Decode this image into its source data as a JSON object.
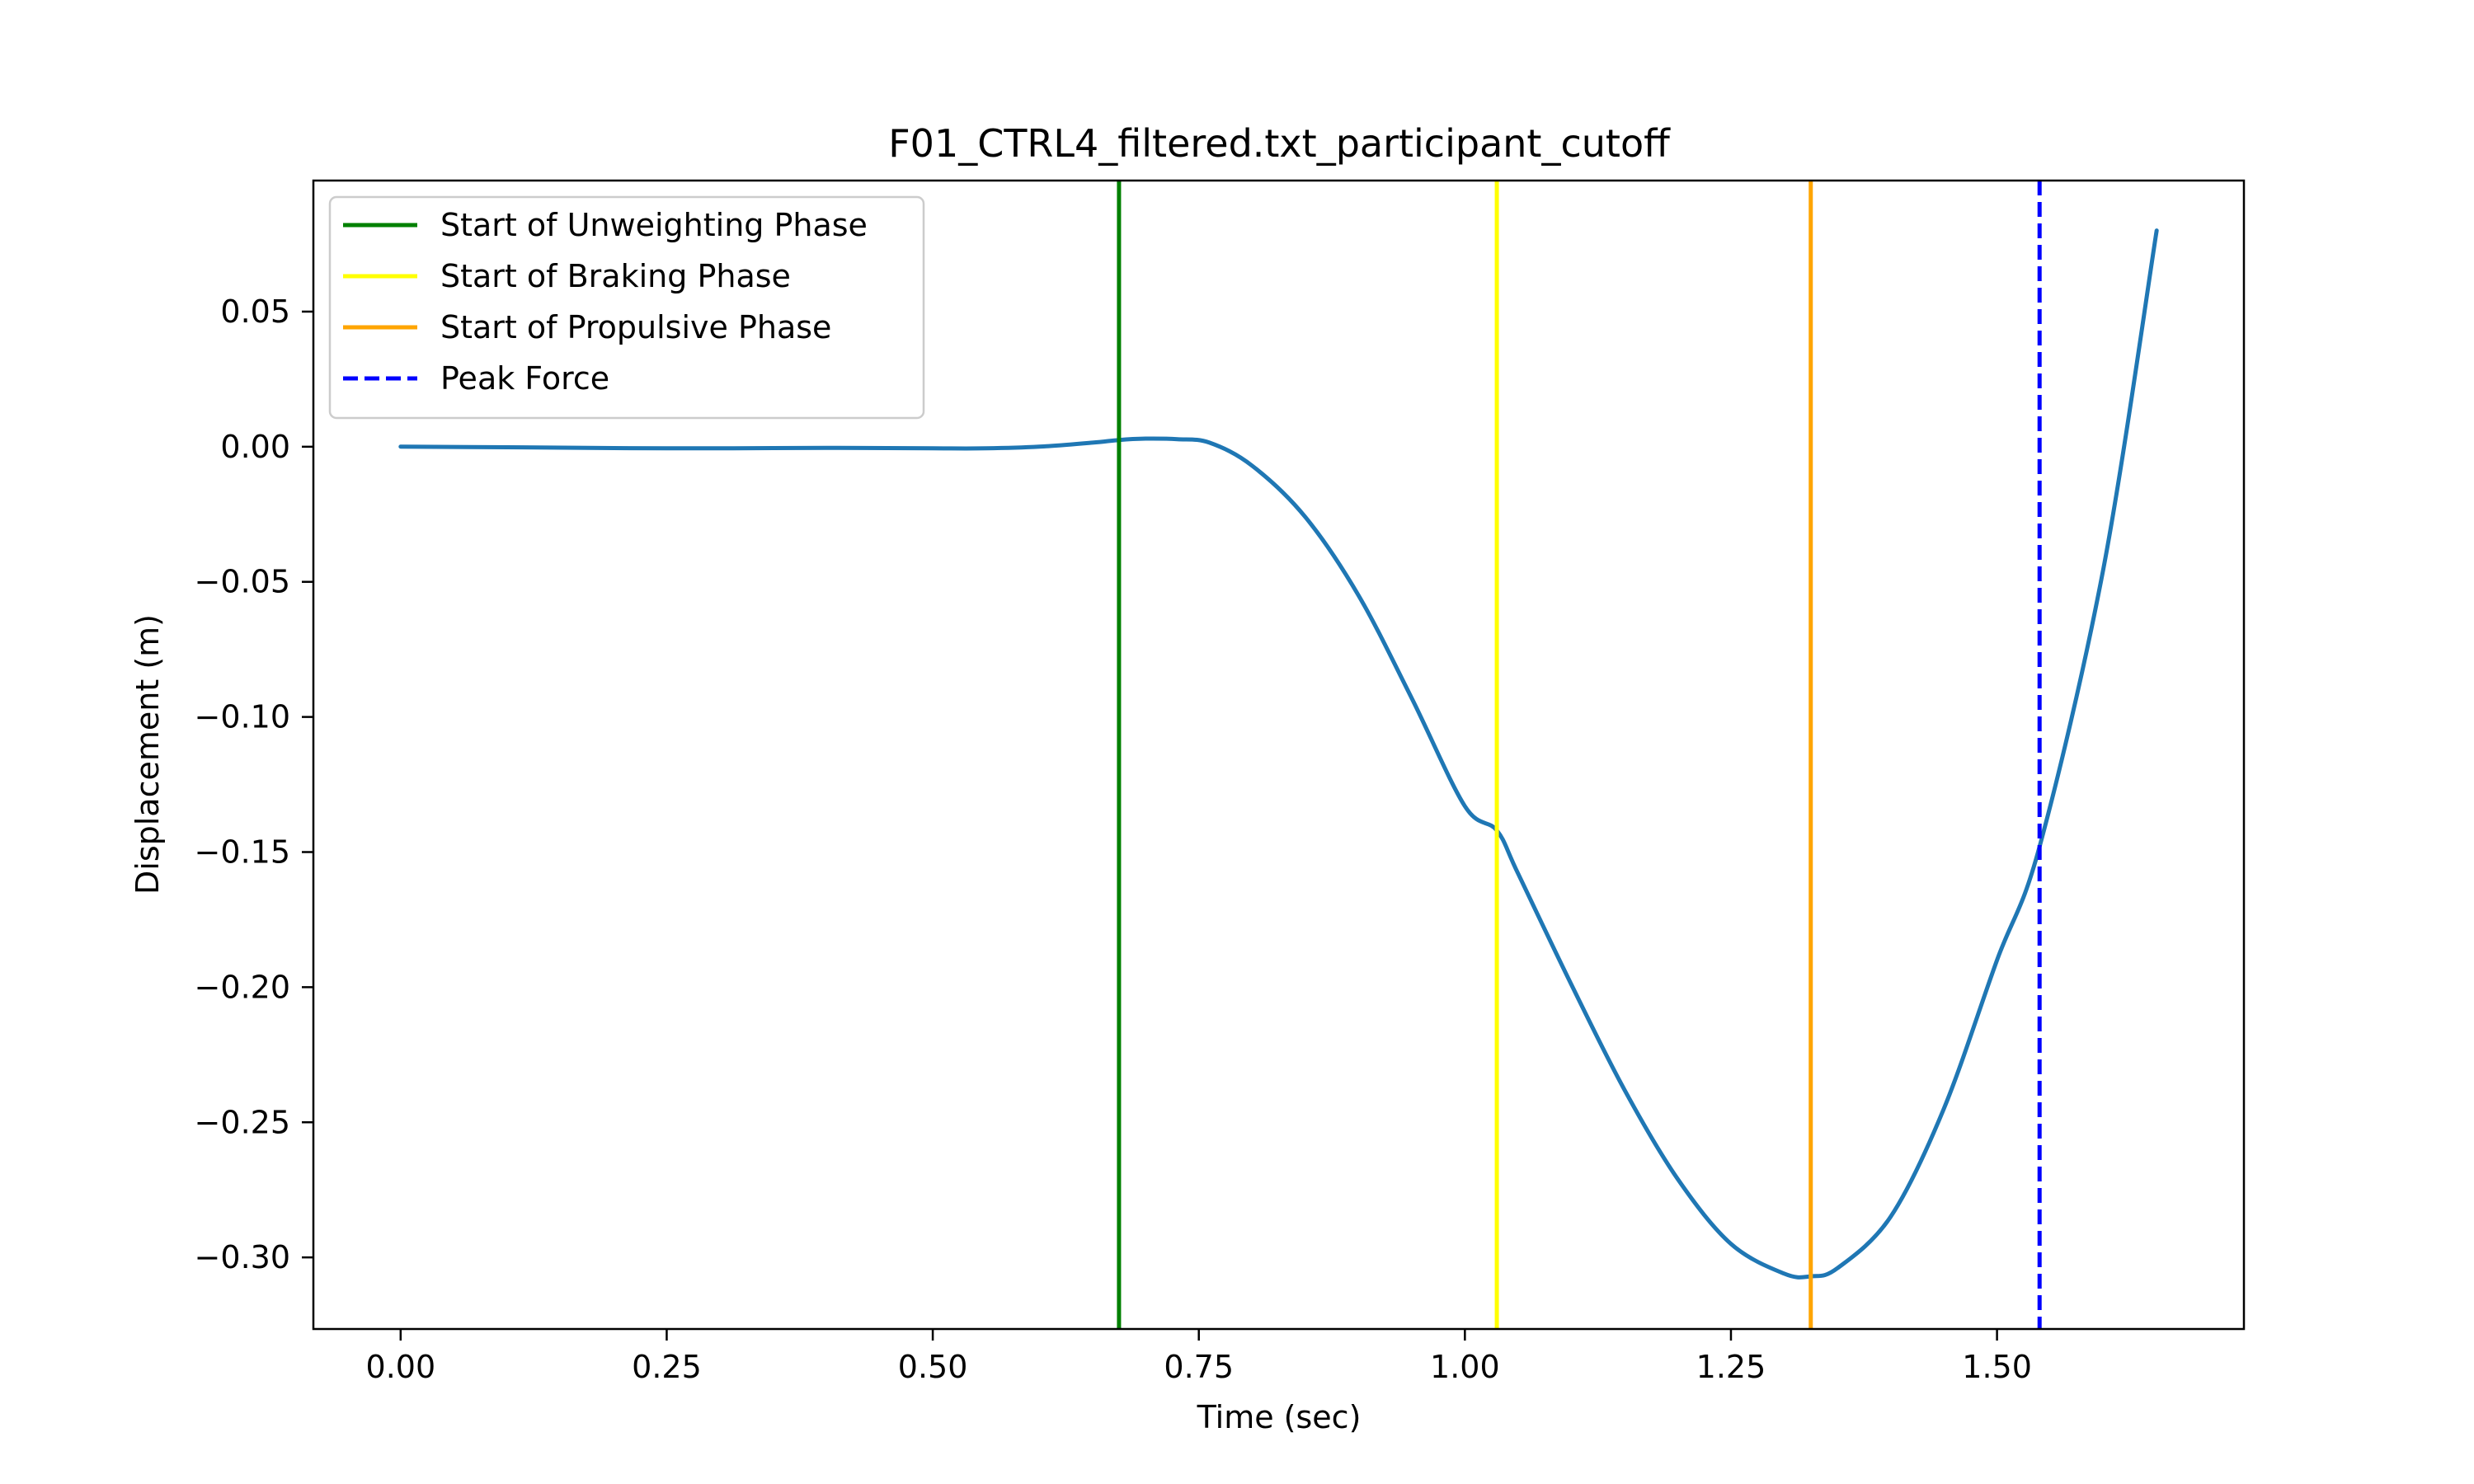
{
  "chart_data": {
    "type": "line",
    "title": "F01_CTRL4_filtered.txt_participant_cutoff",
    "xlabel": "Time (sec)",
    "ylabel": "Displacement (m)",
    "xlim": [
      -0.082,
      1.732
    ],
    "ylim": [
      -0.3265,
      0.0985
    ],
    "xticks": [
      0.0,
      0.25,
      0.5,
      0.75,
      1.0,
      1.25,
      1.5
    ],
    "xtick_labels": [
      "0.00",
      "0.25",
      "0.50",
      "0.75",
      "1.00",
      "1.25",
      "1.50"
    ],
    "yticks": [
      0.05,
      0.0,
      -0.05,
      -0.1,
      -0.15,
      -0.2,
      -0.25,
      -0.3
    ],
    "ytick_labels": [
      "0.05",
      "0.00",
      "−0.05",
      "−0.10",
      "−0.15",
      "−0.20",
      "−0.25",
      "−0.30"
    ],
    "grid": false,
    "legend_position": "top-left",
    "series": [
      {
        "color": "#1f77b4",
        "x": [
          0.0,
          0.1,
          0.2,
          0.3,
          0.4,
          0.5,
          0.55,
          0.6,
          0.65,
          0.675,
          0.7,
          0.73,
          0.76,
          0.8,
          0.85,
          0.9,
          0.95,
          1.0,
          1.03,
          1.05,
          1.1,
          1.15,
          1.2,
          1.25,
          1.3,
          1.325,
          1.35,
          1.4,
          1.45,
          1.5,
          1.54,
          1.6,
          1.65
        ],
        "y": [
          0.0,
          -0.0002,
          -0.0005,
          -0.0006,
          -0.0004,
          -0.0006,
          -0.0006,
          0.0,
          0.0015,
          0.0025,
          0.003,
          0.0028,
          0.0015,
          -0.007,
          -0.026,
          -0.055,
          -0.093,
          -0.133,
          -0.142,
          -0.158,
          -0.199,
          -0.238,
          -0.271,
          -0.295,
          -0.306,
          -0.307,
          -0.304,
          -0.285,
          -0.245,
          -0.19,
          -0.148,
          -0.045,
          0.08
        ]
      }
    ],
    "markers": [
      {
        "name": "Start of Unweighting Phase",
        "x": 0.675,
        "color": "#008000",
        "style": "solid"
      },
      {
        "name": "Start of Braking Phase",
        "x": 1.03,
        "color": "#ffff00",
        "style": "solid"
      },
      {
        "name": "Start of Propulsive Phase",
        "x": 1.325,
        "color": "#ffa500",
        "style": "solid"
      },
      {
        "name": "Peak Force",
        "x": 1.54,
        "color": "#0000ff",
        "style": "dashed"
      }
    ]
  }
}
